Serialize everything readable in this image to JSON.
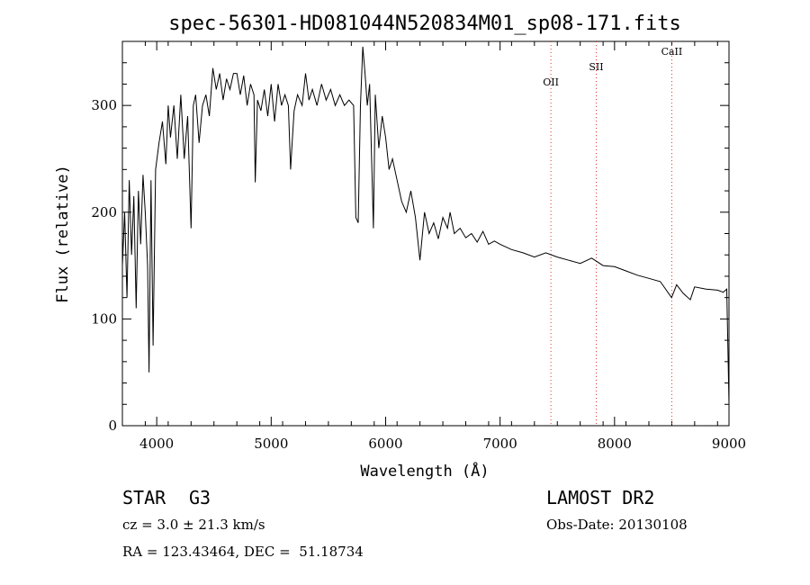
{
  "chart_data": {
    "type": "line",
    "title": "spec-56301-HD081044N520834M01_sp08-171.fits",
    "xlabel": "Wavelength (Å)",
    "ylabel": "Flux (relative)",
    "xlim": [
      3700,
      9000
    ],
    "ylim": [
      0,
      360
    ],
    "x_ticks": [
      4000,
      5000,
      6000,
      7000,
      8000,
      9000
    ],
    "y_ticks": [
      0,
      100,
      200,
      300
    ],
    "grid": false,
    "line_color": "#000000",
    "series": [
      {
        "x": [
          3700,
          3720,
          3740,
          3760,
          3780,
          3800,
          3820,
          3840,
          3860,
          3880,
          3900,
          3920,
          3933,
          3950,
          3968,
          3990,
          4020,
          4050,
          4080,
          4100,
          4120,
          4150,
          4180,
          4210,
          4240,
          4270,
          4300,
          4320,
          4340,
          4370,
          4400,
          4430,
          4460,
          4490,
          4520,
          4550,
          4580,
          4610,
          4640,
          4670,
          4700,
          4730,
          4760,
          4790,
          4820,
          4850,
          4861,
          4880,
          4910,
          4940,
          4970,
          5000,
          5030,
          5060,
          5090,
          5120,
          5150,
          5170,
          5183,
          5200,
          5230,
          5270,
          5300,
          5330,
          5360,
          5400,
          5440,
          5480,
          5520,
          5560,
          5600,
          5640,
          5680,
          5720,
          5740,
          5760,
          5780,
          5800,
          5820,
          5840,
          5860,
          5880,
          5893,
          5910,
          5940,
          5970,
          6000,
          6030,
          6060,
          6100,
          6140,
          6180,
          6220,
          6260,
          6300,
          6340,
          6380,
          6420,
          6460,
          6500,
          6540,
          6563,
          6600,
          6650,
          6700,
          6750,
          6800,
          6850,
          6900,
          6950,
          7000,
          7100,
          7200,
          7300,
          7400,
          7500,
          7600,
          7700,
          7800,
          7900,
          8000,
          8100,
          8200,
          8300,
          8400,
          8498,
          8542,
          8600,
          8662,
          8700,
          8800,
          8900,
          8950,
          8980,
          9000
        ],
        "values": [
          150,
          200,
          120,
          230,
          160,
          215,
          110,
          220,
          170,
          235,
          200,
          150,
          50,
          230,
          75,
          240,
          265,
          285,
          245,
          300,
          270,
          300,
          250,
          310,
          250,
          290,
          185,
          300,
          310,
          265,
          300,
          310,
          290,
          335,
          315,
          330,
          305,
          325,
          315,
          330,
          330,
          310,
          328,
          300,
          320,
          310,
          228,
          305,
          295,
          315,
          290,
          320,
          285,
          320,
          300,
          310,
          300,
          240,
          265,
          295,
          310,
          300,
          330,
          305,
          315,
          300,
          320,
          305,
          315,
          300,
          310,
          300,
          305,
          300,
          195,
          190,
          300,
          355,
          330,
          300,
          320,
          240,
          185,
          310,
          260,
          290,
          270,
          240,
          250,
          230,
          210,
          200,
          220,
          195,
          155,
          200,
          180,
          190,
          175,
          195,
          185,
          200,
          180,
          185,
          176,
          180,
          172,
          182,
          170,
          173,
          170,
          165,
          162,
          158,
          162,
          158,
          155,
          152,
          157,
          150,
          149,
          145,
          141,
          138,
          135,
          120,
          132,
          124,
          118,
          130,
          128,
          127,
          125,
          128,
          20
        ]
      }
    ],
    "annotations": [
      {
        "label": "OII",
        "x": 7444
      },
      {
        "label": "SII",
        "x": 7840
      },
      {
        "label": "CaII",
        "x": 8500
      }
    ],
    "annotation_line_color": "#dd3333"
  },
  "info": {
    "object_class": "STAR",
    "subclass": "G3",
    "survey": "LAMOST DR2",
    "cz": "cz = 3.0 ± 21.3 km/s",
    "obs_date": "Obs-Date: 20130108",
    "coords": "RA = 123.43464, DEC =  51.18734"
  }
}
